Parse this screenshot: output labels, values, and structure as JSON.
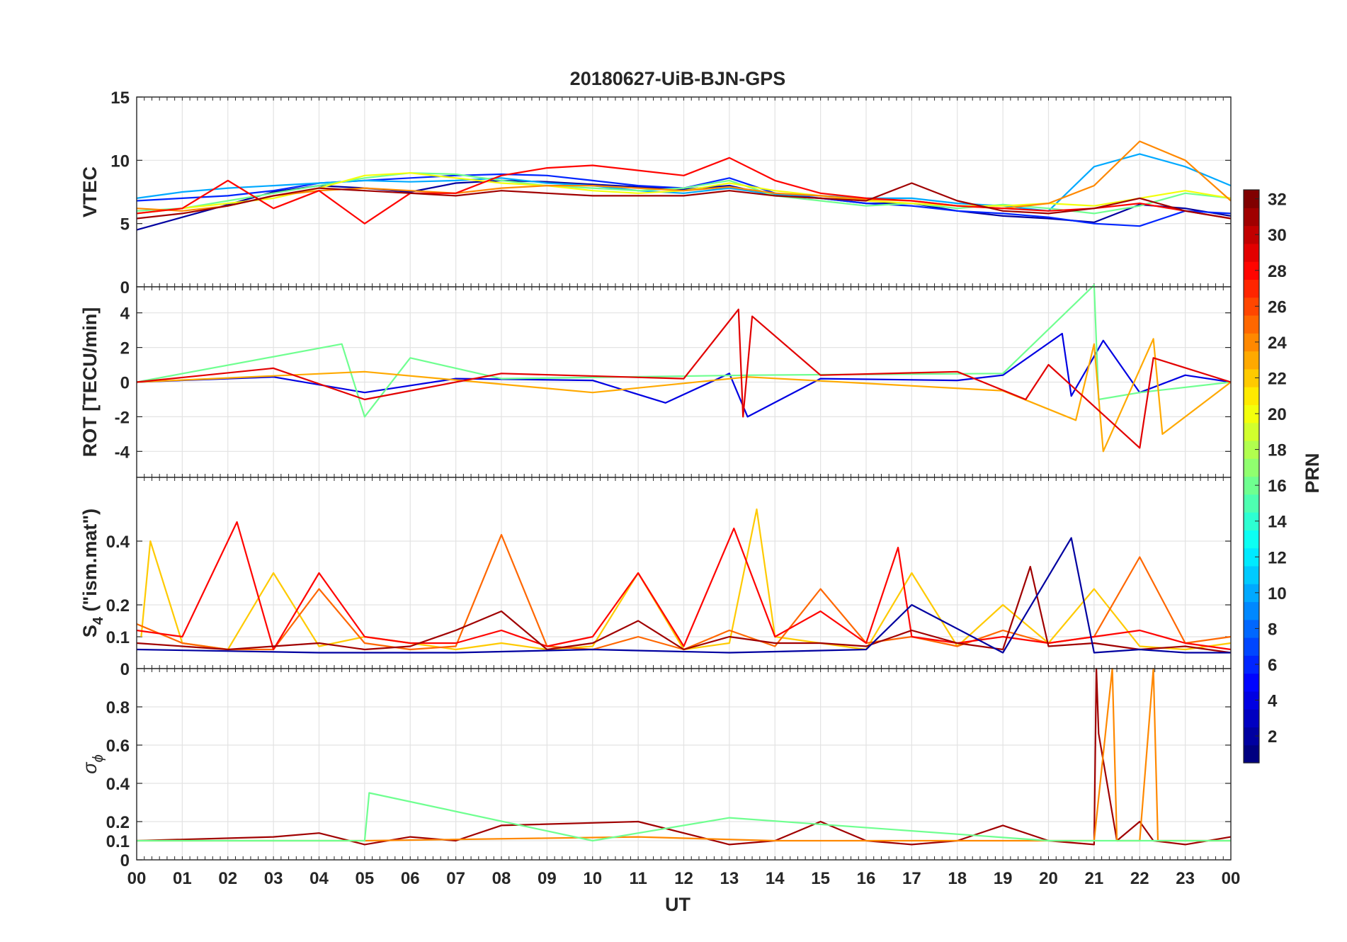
{
  "title": "20180627-UiB-BJN-GPS",
  "xlabel": "UT",
  "x_ticks": [
    "00",
    "01",
    "02",
    "03",
    "04",
    "05",
    "06",
    "07",
    "08",
    "09",
    "10",
    "11",
    "12",
    "13",
    "14",
    "15",
    "16",
    "17",
    "18",
    "19",
    "20",
    "21",
    "22",
    "23",
    "00"
  ],
  "colorbar": {
    "label": "PRN",
    "range": [
      1,
      32
    ],
    "ticks": [
      "2",
      "4",
      "6",
      "8",
      "10",
      "12",
      "14",
      "16",
      "18",
      "20",
      "22",
      "24",
      "26",
      "28",
      "30",
      "32"
    ],
    "colormap": "jet"
  },
  "panels": [
    {
      "id": "vtec",
      "ylabel": "VTEC",
      "ylim": [
        0,
        15
      ],
      "y_tick_values": [
        0,
        5,
        10,
        15
      ],
      "y_tick_labels": [
        "0",
        "5",
        "10",
        "15"
      ]
    },
    {
      "id": "rot",
      "ylabel": "ROT [TECU/min]",
      "ylim": [
        -5.5,
        5.5
      ],
      "y_tick_values": [
        -4,
        -2,
        0,
        2,
        4
      ],
      "y_tick_labels": [
        "-4",
        "-2",
        "0",
        "2",
        "4"
      ]
    },
    {
      "id": "s4",
      "ylabel_main": "S",
      "ylabel_sub": "4",
      "ylabel_rest": " (\"ism.mat\")",
      "ylim": [
        0,
        0.6
      ],
      "y_tick_values": [
        0,
        0.1,
        0.2,
        0.4
      ],
      "y_tick_labels": [
        "0",
        "0.1",
        "0.2",
        "0.4"
      ]
    },
    {
      "id": "sigma",
      "ylabel_main": "σ",
      "ylabel_sub": "ϕ",
      "ylim": [
        0,
        1
      ],
      "y_tick_values": [
        0,
        0.1,
        0.2,
        0.4,
        0.6,
        0.8
      ],
      "y_tick_labels": [
        "0",
        "0.1",
        "0.2",
        "0.4",
        "0.6",
        "0.8"
      ]
    }
  ],
  "chart_data": {
    "type": "line",
    "title": "20180627-UiB-BJN-GPS",
    "xlabel": "UT",
    "xlim": [
      0,
      24
    ],
    "grid": true,
    "colorbar_label": "PRN",
    "series": [
      {
        "panel": "vtec",
        "prn": 2,
        "x": [
          0,
          1,
          2,
          3,
          4,
          5,
          6,
          7,
          8,
          9,
          10,
          11,
          12,
          13,
          14,
          15,
          16,
          17,
          18,
          19,
          20,
          21,
          22,
          23,
          24
        ],
        "y": [
          4.5,
          5.5,
          6.5,
          7.5,
          8,
          7.8,
          7.5,
          8.2,
          8.4,
          8.3,
          8.1,
          7.9,
          7.7,
          8.0,
          7.2,
          7.0,
          6.6,
          6.6,
          6.0,
          5.6,
          5.4,
          5.1,
          6.5,
          6.2,
          5.6
        ]
      },
      {
        "panel": "vtec",
        "prn": 6,
        "x": [
          0,
          1,
          2,
          3,
          4,
          5,
          6,
          7,
          8,
          9,
          10,
          11,
          12,
          13,
          14,
          15,
          16,
          17,
          18,
          19,
          20,
          21,
          22,
          23,
          24
        ],
        "y": [
          6.8,
          7.0,
          7.2,
          7.6,
          8.2,
          8.4,
          8.6,
          8.8,
          8.9,
          8.8,
          8.4,
          8.0,
          7.8,
          8.6,
          7.4,
          7.0,
          6.6,
          6.4,
          6.0,
          5.8,
          5.5,
          5.0,
          4.8,
          6.0,
          5.8
        ]
      },
      {
        "panel": "vtec",
        "prn": 10,
        "x": [
          0,
          1,
          2,
          3,
          4,
          5,
          6,
          7,
          8,
          9,
          10,
          11,
          12,
          13,
          14,
          15,
          16,
          17,
          18,
          19,
          20,
          21,
          22,
          23,
          24
        ],
        "y": [
          7.0,
          7.5,
          7.8,
          8.0,
          8.2,
          8.4,
          8.3,
          8.4,
          8.6,
          8.2,
          8.0,
          7.6,
          7.4,
          7.8,
          7.3,
          7.2,
          7.0,
          7.0,
          6.6,
          6.4,
          6.0,
          9.5,
          10.5,
          9.5,
          8.0
        ]
      },
      {
        "panel": "vtec",
        "prn": 16,
        "x": [
          0,
          1,
          2,
          3,
          4,
          5,
          6,
          7,
          8,
          9,
          10,
          11,
          12,
          13,
          14,
          15,
          16,
          17,
          18,
          19,
          20,
          21,
          22,
          23,
          24
        ],
        "y": [
          6.0,
          6.2,
          6.8,
          7.4,
          8.0,
          8.6,
          9.0,
          8.9,
          8.4,
          8.0,
          7.8,
          7.6,
          7.8,
          8.4,
          7.2,
          6.8,
          6.4,
          6.6,
          6.2,
          6.5,
          6.2,
          5.8,
          6.4,
          7.4,
          7.0
        ]
      },
      {
        "panel": "vtec",
        "prn": 20,
        "x": [
          0,
          1,
          2,
          3,
          4,
          5,
          6,
          7,
          8,
          9,
          10,
          11,
          12,
          13,
          14,
          15,
          16,
          17,
          18,
          19,
          20,
          21,
          22,
          23,
          24
        ],
        "y": [
          5.8,
          6.2,
          6.6,
          7.0,
          7.8,
          8.8,
          9.0,
          8.6,
          8.2,
          8.0,
          7.6,
          7.4,
          7.6,
          8.2,
          7.6,
          7.2,
          6.8,
          6.6,
          6.4,
          6.4,
          6.6,
          6.4,
          7.0,
          7.6,
          7.0
        ]
      },
      {
        "panel": "vtec",
        "prn": 24,
        "x": [
          0,
          1,
          2,
          3,
          4,
          5,
          6,
          7,
          8,
          9,
          10,
          11,
          12,
          13,
          14,
          15,
          16,
          17,
          18,
          19,
          20,
          21,
          22,
          23,
          24
        ],
        "y": [
          6.2,
          6.0,
          6.4,
          7.2,
          7.6,
          7.8,
          7.6,
          7.4,
          7.8,
          8.0,
          8.0,
          7.8,
          7.6,
          7.9,
          7.4,
          7.2,
          6.9,
          6.8,
          6.4,
          6.2,
          6.6,
          8.0,
          11.5,
          10.0,
          6.8
        ]
      },
      {
        "panel": "vtec",
        "prn": 28,
        "x": [
          0,
          1,
          2,
          3,
          4,
          5,
          6,
          7,
          8,
          9,
          10,
          11,
          12,
          13,
          14,
          15,
          16,
          17,
          18,
          19,
          20,
          21,
          22,
          23,
          24
        ],
        "y": [
          5.8,
          6.2,
          8.4,
          6.2,
          7.6,
          5.0,
          7.4,
          7.4,
          8.8,
          9.4,
          9.6,
          9.2,
          8.8,
          10.2,
          8.4,
          7.4,
          7.0,
          6.8,
          6.4,
          6.2,
          6.0,
          6.2,
          6.6,
          6.0,
          5.4
        ]
      },
      {
        "panel": "vtec",
        "prn": 31,
        "x": [
          0,
          1,
          2,
          3,
          4,
          5,
          6,
          7,
          8,
          9,
          10,
          11,
          12,
          13,
          14,
          15,
          16,
          17,
          18,
          19,
          20,
          21,
          22,
          23,
          24
        ],
        "y": [
          5.4,
          5.8,
          6.4,
          7.2,
          7.8,
          7.6,
          7.4,
          7.2,
          7.6,
          7.4,
          7.2,
          7.2,
          7.2,
          7.6,
          7.2,
          7.0,
          6.8,
          8.2,
          6.8,
          6.0,
          5.8,
          6.2,
          7.0,
          6.0,
          5.4
        ]
      },
      {
        "panel": "rot",
        "prn": 4,
        "x": [
          0,
          3,
          5,
          7,
          10,
          11.6,
          13,
          13.4,
          15,
          18,
          19,
          20.3,
          20.5,
          21.2,
          22,
          23,
          24
        ],
        "y": [
          0,
          0.3,
          -0.6,
          0.2,
          0.1,
          -1.2,
          0.5,
          -2.0,
          0.2,
          0.1,
          0.4,
          2.8,
          -0.8,
          2.4,
          -0.6,
          0.4,
          0
        ]
      },
      {
        "panel": "rot",
        "prn": 16,
        "x": [
          0,
          4.5,
          5,
          6,
          8,
          13.5,
          19,
          21,
          21.1,
          22,
          24
        ],
        "y": [
          0,
          2.2,
          -2.0,
          1.4,
          0.2,
          0.4,
          0.5,
          5.6,
          -1.0,
          -0.6,
          0
        ]
      },
      {
        "panel": "rot",
        "prn": 23,
        "x": [
          0,
          5,
          10,
          13.4,
          19,
          20.6,
          21,
          21.2,
          22.3,
          22.5,
          24
        ],
        "y": [
          0,
          0.6,
          -0.6,
          0.3,
          -0.5,
          -2.2,
          2.2,
          -4.0,
          2.5,
          -3.0,
          0
        ]
      },
      {
        "panel": "rot",
        "prn": 29,
        "x": [
          0,
          3,
          5,
          8,
          12,
          13.2,
          13.3,
          13.5,
          15,
          18,
          19.5,
          20,
          21,
          22,
          22.3,
          24
        ],
        "y": [
          0,
          0.8,
          -1.0,
          0.5,
          0.2,
          4.2,
          -2.0,
          3.8,
          0.4,
          0.6,
          -1.0,
          1.0,
          -1.4,
          -3.8,
          1.4,
          0
        ]
      },
      {
        "panel": "s4",
        "prn": 22,
        "x": [
          0.1,
          0.3,
          1,
          2,
          3,
          4,
          5,
          6,
          7,
          8,
          9,
          10,
          11,
          12,
          13,
          13.6,
          14,
          15,
          16,
          17,
          18,
          19,
          20,
          21,
          22,
          23,
          24
        ],
        "y": [
          0.1,
          0.4,
          0.08,
          0.06,
          0.3,
          0.07,
          0.1,
          0.08,
          0.06,
          0.08,
          0.06,
          0.07,
          0.3,
          0.06,
          0.08,
          0.5,
          0.1,
          0.08,
          0.06,
          0.3,
          0.07,
          0.2,
          0.08,
          0.25,
          0.07,
          0.06,
          0.08
        ]
      },
      {
        "panel": "s4",
        "prn": 25,
        "x": [
          0,
          1,
          2,
          3,
          4,
          5,
          6,
          7,
          8,
          9,
          10,
          11,
          12,
          13,
          14,
          15,
          16,
          17,
          18,
          19,
          20,
          21,
          22,
          23,
          24
        ],
        "y": [
          0.14,
          0.08,
          0.06,
          0.06,
          0.25,
          0.08,
          0.06,
          0.07,
          0.42,
          0.07,
          0.06,
          0.1,
          0.06,
          0.12,
          0.07,
          0.25,
          0.08,
          0.1,
          0.07,
          0.12,
          0.08,
          0.1,
          0.35,
          0.08,
          0.1
        ]
      },
      {
        "panel": "s4",
        "prn": 28,
        "x": [
          0,
          1,
          2.2,
          3,
          4,
          5,
          6,
          7,
          8,
          9,
          10,
          11,
          12,
          13.1,
          14,
          15,
          16,
          16.7,
          17,
          18,
          19,
          20,
          21,
          22,
          23,
          24
        ],
        "y": [
          0.12,
          0.1,
          0.46,
          0.06,
          0.3,
          0.1,
          0.08,
          0.08,
          0.12,
          0.07,
          0.1,
          0.3,
          0.07,
          0.44,
          0.1,
          0.18,
          0.08,
          0.38,
          0.1,
          0.08,
          0.1,
          0.08,
          0.1,
          0.12,
          0.08,
          0.06
        ]
      },
      {
        "panel": "s4",
        "prn": 31,
        "x": [
          0,
          1,
          2,
          3,
          4,
          5,
          6,
          7,
          8,
          9,
          10,
          11,
          12,
          13,
          14,
          15,
          16,
          17,
          18,
          19,
          19.6,
          20,
          21,
          22,
          23,
          24
        ],
        "y": [
          0.08,
          0.07,
          0.06,
          0.07,
          0.08,
          0.06,
          0.07,
          0.12,
          0.18,
          0.06,
          0.08,
          0.15,
          0.06,
          0.1,
          0.08,
          0.08,
          0.07,
          0.12,
          0.08,
          0.06,
          0.32,
          0.07,
          0.08,
          0.06,
          0.07,
          0.05
        ]
      },
      {
        "panel": "s4",
        "prn": 2,
        "x": [
          0,
          4,
          7,
          10,
          13,
          16,
          17,
          19,
          20.5,
          21,
          22,
          23,
          24
        ],
        "y": [
          0.06,
          0.05,
          0.05,
          0.06,
          0.05,
          0.06,
          0.2,
          0.05,
          0.41,
          0.05,
          0.06,
          0.05,
          0.05
        ]
      },
      {
        "panel": "sigma",
        "prn": 31,
        "x": [
          0,
          3,
          4,
          5,
          6,
          7,
          8,
          11,
          13,
          14,
          15,
          16,
          17,
          18,
          19,
          20,
          21,
          21.05,
          21.1,
          21.5,
          22,
          22.3,
          23,
          24
        ],
        "y": [
          0.1,
          0.12,
          0.14,
          0.08,
          0.12,
          0.1,
          0.18,
          0.2,
          0.08,
          0.1,
          0.2,
          0.1,
          0.08,
          0.1,
          0.18,
          0.1,
          0.08,
          1.0,
          0.66,
          0.1,
          0.2,
          0.1,
          0.08,
          0.12
        ]
      },
      {
        "panel": "sigma",
        "prn": 24,
        "x": [
          0,
          5,
          11,
          14,
          20,
          21,
          21.4,
          21.5,
          22,
          22.3,
          22.4,
          23,
          24
        ],
        "y": [
          0.1,
          0.1,
          0.12,
          0.1,
          0.1,
          0.1,
          1.0,
          0.1,
          0.1,
          1.0,
          0.1,
          0.1,
          0.1
        ]
      },
      {
        "panel": "sigma",
        "prn": 16,
        "x": [
          0,
          5,
          5.1,
          10,
          13,
          20,
          24
        ],
        "y": [
          0.1,
          0.1,
          0.35,
          0.1,
          0.22,
          0.1,
          0.1
        ]
      }
    ]
  }
}
